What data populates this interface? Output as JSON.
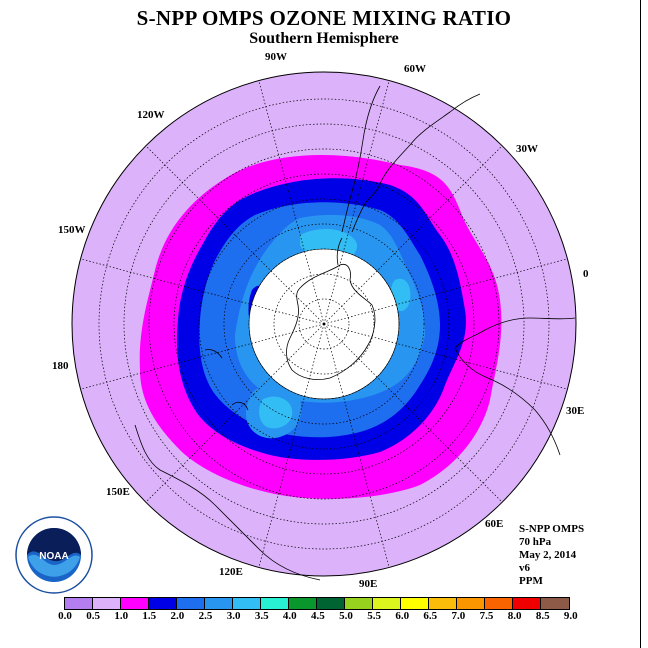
{
  "header": {
    "title": "S-NPP OMPS OZONE MIXING RATIO",
    "subtitle": "Southern Hemisphere"
  },
  "longitude_labels": [
    {
      "text": "90W",
      "id": "lon-90w"
    },
    {
      "text": "60W",
      "id": "lon-60w"
    },
    {
      "text": "30W",
      "id": "lon-30w"
    },
    {
      "text": "0",
      "id": "lon-0"
    },
    {
      "text": "30E",
      "id": "lon-30e"
    },
    {
      "text": "60E",
      "id": "lon-60e"
    },
    {
      "text": "90E",
      "id": "lon-90e"
    },
    {
      "text": "120E",
      "id": "lon-120e"
    },
    {
      "text": "150E",
      "id": "lon-150e"
    },
    {
      "text": "180",
      "id": "lon-180"
    },
    {
      "text": "150W",
      "id": "lon-150w"
    },
    {
      "text": "120W",
      "id": "lon-120w"
    }
  ],
  "info": {
    "product": "S-NPP OMPS",
    "level": "70 hPa",
    "date": "May 2, 2014",
    "version": "v6",
    "units": "PPM"
  },
  "colorbar": {
    "colors": [
      "#b47ef0",
      "#dcb2fa",
      "#ff00ff",
      "#0000e6",
      "#1e6ef0",
      "#2896f0",
      "#32bef5",
      "#28f0d2",
      "#08962d",
      "#006432",
      "#96d21e",
      "#dcf51e",
      "#ffff00",
      "#fabe0a",
      "#fa9600",
      "#fa6400",
      "#f00000",
      "#8c5a46"
    ],
    "tick_labels": [
      "0.0",
      "0.5",
      "1.0",
      "1.5",
      "2.0",
      "2.5",
      "3.0",
      "3.5",
      "4.0",
      "4.5",
      "5.0",
      "5.5",
      "6.0",
      "6.5",
      "7.0",
      "7.5",
      "8.0",
      "8.5",
      "9.0"
    ]
  },
  "map_colors": {
    "band_0_5_1_0": "#dcb2fa",
    "band_1_0_1_5": "#ff00ff",
    "band_1_5_2_0": "#0000e6",
    "band_2_0_2_5": "#1e6ef0",
    "band_2_5_3_0": "#2896f0",
    "band_3_0_3_5": "#32bef5",
    "no_data": "#ffffff"
  },
  "logo": {
    "text": "NOAA"
  }
}
